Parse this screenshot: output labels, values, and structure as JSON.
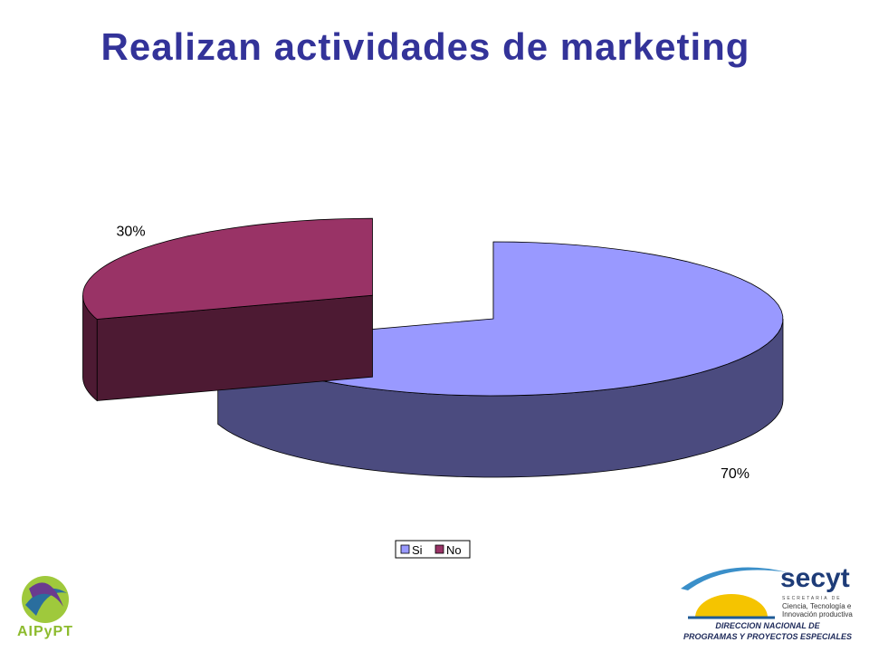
{
  "chart_data": {
    "type": "pie3d",
    "title": "Realizan actividades de marketing",
    "categories": [
      "Si",
      "No"
    ],
    "values": [
      70,
      30
    ],
    "value_labels": [
      "70%",
      "30%"
    ],
    "colors": [
      "#9999ff",
      "#993366"
    ],
    "side_colors": [
      "#4b4b7f",
      "#4d1a33"
    ],
    "legend": "bottom"
  },
  "footer": {
    "left_logo": "AIPyPT",
    "right_logo": "secyt",
    "right_lines": [
      "SECRETARIA DE",
      "Ciencia, Tecnología e",
      "Innovación productiva"
    ],
    "right_caption": [
      "DIRECCION NACIONAL DE",
      "PROGRAMAS Y PROYECTOS ESPECIALES"
    ]
  }
}
